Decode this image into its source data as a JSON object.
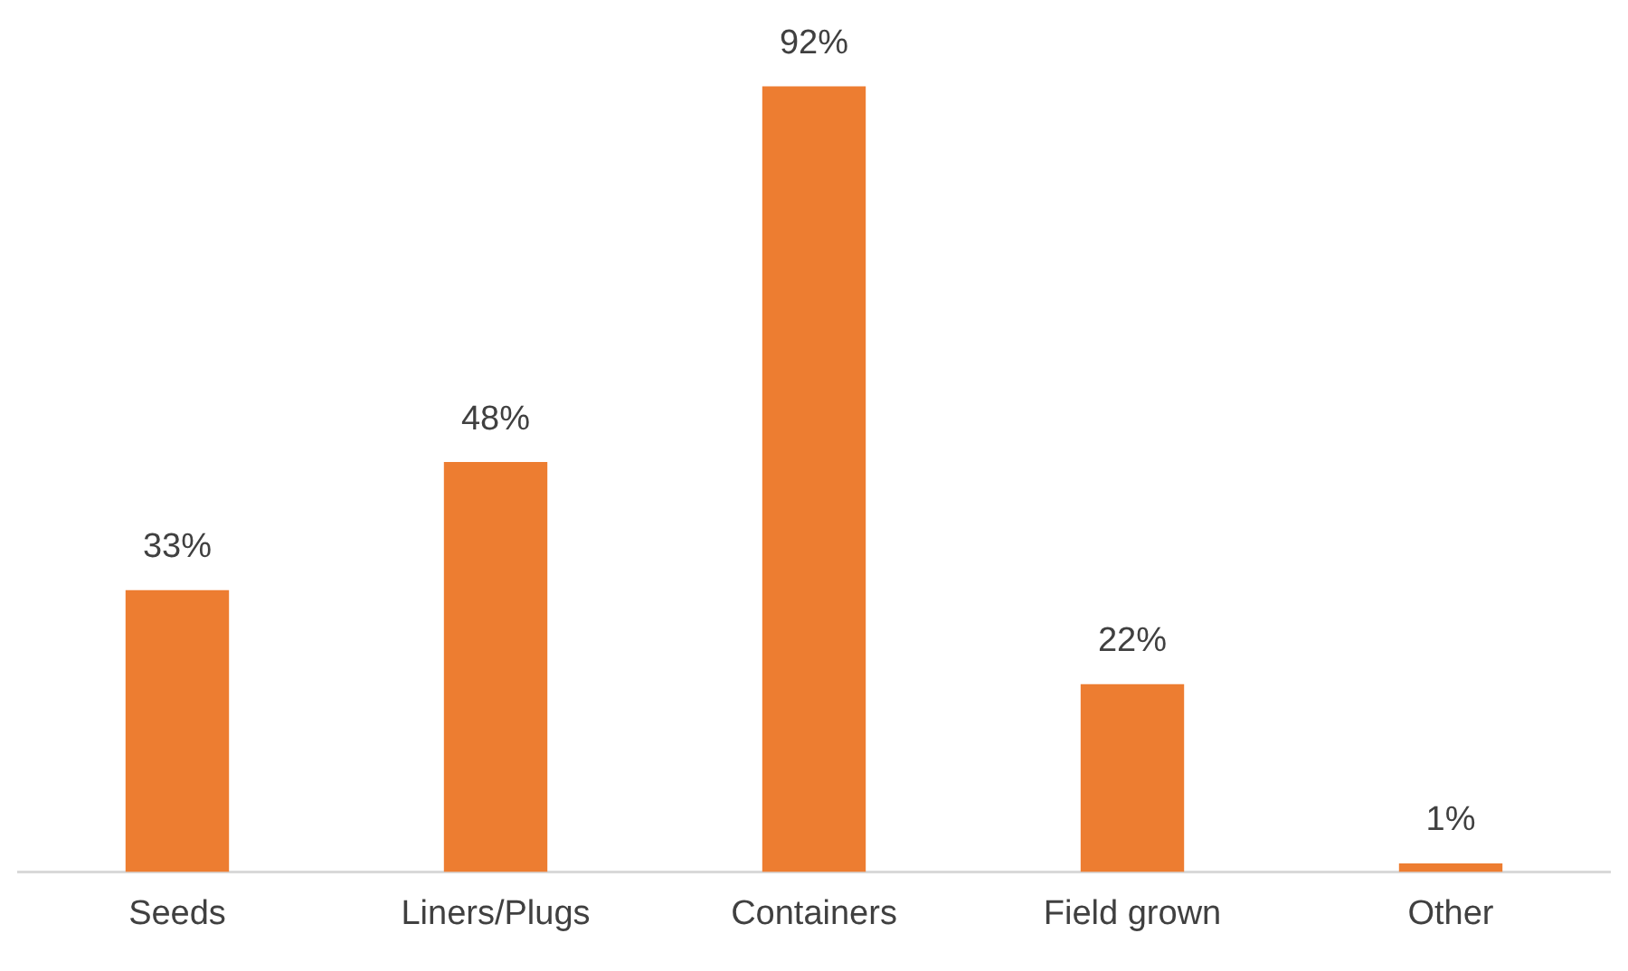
{
  "chart_data": {
    "type": "bar",
    "categories": [
      "Seeds",
      "Liners/Plugs",
      "Containers",
      "Field grown",
      "Other"
    ],
    "values": [
      33,
      48,
      92,
      22,
      1
    ],
    "value_labels": [
      "33%",
      "48%",
      "92%",
      "22%",
      "1%"
    ],
    "color": "#ed7d31",
    "tick_labels": "x",
    "grid": false,
    "legend": false
  }
}
